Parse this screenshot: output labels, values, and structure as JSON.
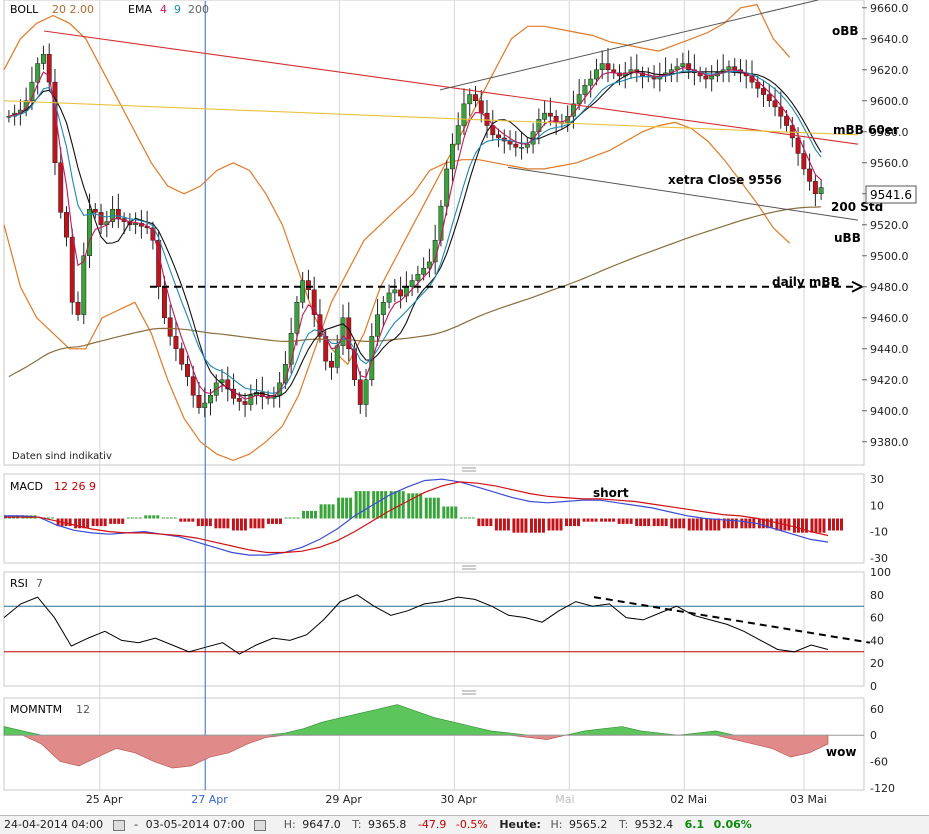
{
  "panels": {
    "price": {
      "boll": {
        "name": "BOLL",
        "params": "20 2.00"
      },
      "ema": {
        "name": "EMA",
        "p1": "4",
        "p2": "9",
        "p3": "200"
      },
      "disclaimer": "Daten sind indikativ",
      "last_price": "9541.6"
    },
    "macd": {
      "name": "MACD",
      "params": "12 26 9"
    },
    "rsi": {
      "name": "RSI",
      "params": "7"
    },
    "momentum": {
      "name": "MOMNTM",
      "params": "12"
    }
  },
  "annotations": {
    "obb": "oBB",
    "mbb60er": "mBB 60er",
    "xetra_close": "xetra Close 9556",
    "std200": "200 Std",
    "ubb": "uBB",
    "daily_mbb": "daily mBB",
    "short": "short",
    "wow": "wow"
  },
  "status": {
    "start": "24-04-2014 04:00",
    "separator": "-",
    "end": "03-05-2014 07:00",
    "high_label": "H:",
    "low_label": "T:",
    "high": "9647.0",
    "low": "9365.8",
    "change": "-47.9",
    "change_pct": "-0.5%",
    "today_label": "Heute:",
    "today_high": "9565.2",
    "today_low": "9532.4",
    "today_change": "6.1",
    "today_change_pct": "0.06%"
  },
  "colors": {
    "up": "#3aa23a",
    "down": "#c0141c",
    "ema4": "#c2185b",
    "ema9": "#1e88b4",
    "ema200": "#8a6d3b",
    "boll": "#e07a28",
    "sma_black": "#111111",
    "trend_red": "#d32f2f",
    "trend_yellow": "#e8c23a",
    "channel": "#555555",
    "macd_line": "#3b4bd6",
    "signal_line": "#d01010",
    "rsi_upper": "#2a6f8a",
    "rsi_lower": "#c00000",
    "momentum_pos": "#5cc55c",
    "momentum_neg": "#e08a8a",
    "highlight_date": "#3366cc",
    "mai_label": "#bbbbbb"
  },
  "chart_data": [
    {
      "type": "candlestick",
      "panel": "price",
      "y_ticks": [
        "9380.0",
        "9400.0",
        "9420.0",
        "9440.0",
        "9460.0",
        "9480.0",
        "9500.0",
        "9520.0",
        "9540.0",
        "9560.0",
        "9580.0",
        "9600.0",
        "9620.0",
        "9640.0",
        "9660.0"
      ],
      "ylim": [
        9365,
        9665
      ],
      "x_ticks": [
        {
          "label": "25 Apr",
          "t": 20,
          "color": "#222"
        },
        {
          "label": "27 Apr",
          "t": 42,
          "color": "#3366cc"
        },
        {
          "label": "29 Apr",
          "t": 70,
          "color": "#222"
        },
        {
          "label": "30 Apr",
          "t": 94,
          "color": "#222"
        },
        {
          "label": "Mai",
          "t": 118,
          "color": "#bbbbbb"
        },
        {
          "label": "02 Mai",
          "t": 142,
          "color": "#222"
        },
        {
          "label": "03 Mai",
          "t": 167,
          "color": "#222"
        }
      ],
      "t_range": [
        0,
        172
      ],
      "candles_close": [
        9590,
        9592,
        9594,
        9600,
        9612,
        9624,
        9630,
        9612,
        9560,
        9528,
        9512,
        9470,
        9462,
        9500,
        9530,
        9528,
        9520,
        9522,
        9530,
        9524,
        9522,
        9520,
        9521,
        9519,
        9518,
        9510,
        9480,
        9460,
        9448,
        9440,
        9430,
        9422,
        9410,
        9402,
        9405,
        9410,
        9418,
        9420,
        9414,
        9408,
        9406,
        9404,
        9410,
        9412,
        9409,
        9408,
        9410,
        9418,
        9430,
        9450,
        9470,
        9484,
        9478,
        9462,
        9448,
        9432,
        9428,
        9442,
        9460,
        9440,
        9420,
        9404,
        9420,
        9448,
        9462,
        9470,
        9476,
        9478,
        9474,
        9480,
        9484,
        9488,
        9492,
        9496,
        9510,
        9532,
        9556,
        9572,
        9584,
        9598,
        9604,
        9600,
        9592,
        9584,
        9578,
        9576,
        9574,
        9572,
        9570,
        9570,
        9572,
        9580,
        9588,
        9592,
        9590,
        9586,
        9586,
        9590,
        9598,
        9604,
        9610,
        9614,
        9620,
        9624,
        9620,
        9618,
        9616,
        9618,
        9620,
        9618,
        9616,
        9616,
        9614,
        9616,
        9618,
        9620,
        9622,
        9624,
        9620,
        9618,
        9616,
        9614,
        9616,
        9618,
        9620,
        9622,
        9620,
        9618,
        9616,
        9612,
        9608,
        9604,
        9600,
        9596,
        9590,
        9584,
        9576,
        9566,
        9556,
        9548,
        9540,
        9544
      ],
      "boll_upper": [
        9620,
        9640,
        9650,
        9655,
        9650,
        9640,
        9620,
        9600,
        9580,
        9560,
        9545,
        9540,
        9545,
        9555,
        9560,
        9555,
        9540,
        9520,
        9490,
        9460,
        9440,
        9430,
        9450,
        9480,
        9500,
        9520,
        9540,
        9560,
        9580,
        9600,
        9620,
        9640,
        9648,
        9648,
        9646,
        9644,
        9642,
        9638,
        9636,
        9634,
        9632,
        9636,
        9640,
        9644,
        9650,
        9660,
        9662,
        9640,
        9628
      ],
      "boll_lower": [
        9520,
        9480,
        9460,
        9450,
        9440,
        9440,
        9460,
        9465,
        9470,
        9450,
        9420,
        9395,
        9380,
        9372,
        9368,
        9372,
        9380,
        9390,
        9410,
        9440,
        9470,
        9490,
        9510,
        9520,
        9530,
        9540,
        9555,
        9560,
        9562,
        9562,
        9560,
        9558,
        9556,
        9556,
        9558,
        9560,
        9564,
        9568,
        9574,
        9580,
        9584,
        9586,
        9582,
        9574,
        9562,
        9548,
        9534,
        9518,
        9508
      ]
    },
    {
      "type": "line",
      "panel": "macd",
      "y_ticks": [
        "30",
        "10",
        "-10",
        "-30"
      ],
      "ylim": [
        -34,
        34
      ],
      "series": [
        {
          "values": [
            2,
            2,
            1,
            -5,
            -9,
            -11,
            -12,
            -11,
            -10,
            -12,
            -14,
            -18,
            -22,
            -26,
            -28,
            -28,
            -26,
            -22,
            -16,
            -8,
            2,
            10,
            18,
            24,
            29,
            30,
            28,
            24,
            20,
            16,
            13,
            12,
            13,
            14,
            14,
            12,
            10,
            8,
            5,
            2,
            0,
            -1,
            -2,
            -4,
            -8,
            -12,
            -16,
            -18
          ]
        },
        {
          "values": [
            1,
            1,
            1,
            -2,
            -5,
            -8,
            -10,
            -11,
            -11,
            -12,
            -13,
            -15,
            -18,
            -21,
            -24,
            -26,
            -26,
            -25,
            -22,
            -17,
            -10,
            -2,
            6,
            13,
            20,
            25,
            28,
            27,
            25,
            22,
            19,
            17,
            16,
            15,
            15,
            14,
            13,
            11,
            9,
            7,
            5,
            3,
            2,
            0,
            -3,
            -6,
            -10,
            -13
          ]
        }
      ]
    },
    {
      "type": "line",
      "panel": "rsi",
      "y_ticks": [
        "100",
        "80",
        "60",
        "40",
        "20",
        "0"
      ],
      "ylim": [
        0,
        100
      ],
      "levels": [
        70,
        30
      ],
      "values": [
        60,
        72,
        78,
        60,
        35,
        42,
        48,
        40,
        38,
        42,
        36,
        30,
        34,
        38,
        28,
        36,
        42,
        40,
        45,
        58,
        74,
        80,
        70,
        62,
        66,
        72,
        74,
        78,
        76,
        70,
        62,
        60,
        56,
        66,
        74,
        70,
        72,
        60,
        58,
        64,
        70,
        62,
        58,
        54,
        48,
        40,
        32,
        30,
        36,
        32
      ]
    },
    {
      "type": "bar",
      "panel": "momentum",
      "y_ticks": [
        "60",
        "0",
        "-60",
        "-120"
      ],
      "ylim": [
        -125,
        85
      ],
      "values": [
        20,
        10,
        -20,
        -60,
        -70,
        -50,
        -30,
        -40,
        -60,
        -75,
        -70,
        -50,
        -40,
        -20,
        -5,
        5,
        15,
        30,
        40,
        50,
        60,
        70,
        55,
        40,
        30,
        20,
        10,
        5,
        -5,
        -10,
        0,
        10,
        15,
        20,
        10,
        5,
        0,
        5,
        10,
        -10,
        -20,
        -30,
        -50,
        -40,
        -20
      ]
    }
  ]
}
